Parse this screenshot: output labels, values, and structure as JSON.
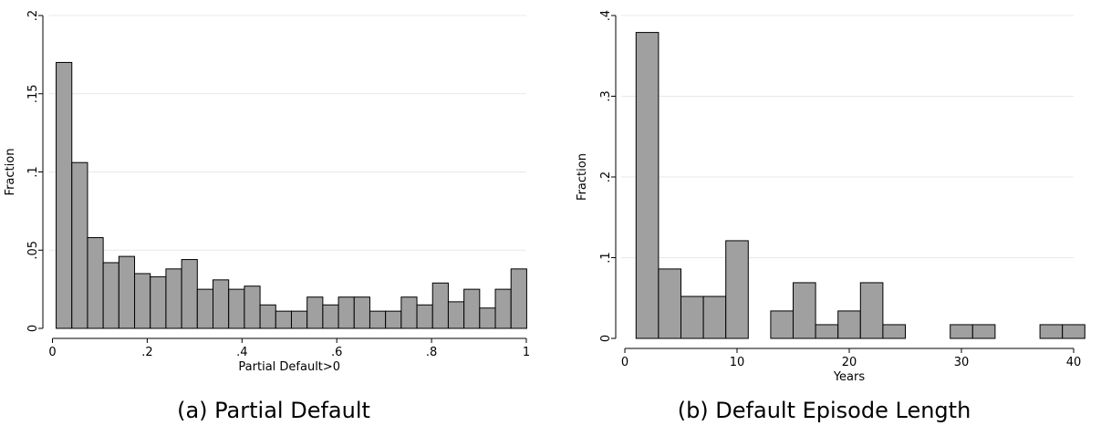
{
  "captions": {
    "a": "(a) Partial Default",
    "b": "(b) Default Episode Length"
  },
  "colors": {
    "bar_fill": "#a0a0a0",
    "bar_stroke": "#000000",
    "grid": "#e8e8e8"
  },
  "chart_data": [
    {
      "type": "bar",
      "xlabel": "Partial Default>0",
      "ylabel": "Fraction",
      "xlim": [
        0,
        1
      ],
      "ylim": [
        0,
        0.2
      ],
      "xticks": [
        0,
        0.2,
        0.4,
        0.6,
        0.8,
        1
      ],
      "xtick_labels": [
        "0",
        ".2",
        ".4",
        ".6",
        ".8",
        "1"
      ],
      "yticks": [
        0,
        0.05,
        0.1,
        0.15,
        0.2
      ],
      "ytick_labels": [
        "0",
        ".05",
        ".1",
        ".15",
        ".2"
      ],
      "grid": true,
      "bin_start": 0.0078,
      "bin_width": 0.0331,
      "values": [
        0.17,
        0.106,
        0.058,
        0.042,
        0.046,
        0.035,
        0.033,
        0.038,
        0.044,
        0.025,
        0.031,
        0.025,
        0.027,
        0.015,
        0.011,
        0.011,
        0.02,
        0.015,
        0.02,
        0.02,
        0.011,
        0.011,
        0.02,
        0.015,
        0.029,
        0.017,
        0.025,
        0.013,
        0.025,
        0.038
      ]
    },
    {
      "type": "bar",
      "xlabel": "Years",
      "ylabel": "Fraction",
      "xlim": [
        0,
        40
      ],
      "ylim": [
        0,
        0.4
      ],
      "xticks": [
        0,
        10,
        20,
        30,
        40
      ],
      "xtick_labels": [
        "0",
        "10",
        "20",
        "30",
        "40"
      ],
      "yticks": [
        0,
        0.1,
        0.2,
        0.3,
        0.4
      ],
      "ytick_labels": [
        "0",
        ".1",
        ".2",
        ".3",
        ".4"
      ],
      "grid": true,
      "bin_start": 1,
      "bin_width": 2,
      "values": [
        0.379,
        0.086,
        0.052,
        0.052,
        0.121,
        0,
        0.034,
        0.069,
        0.017,
        0.034,
        0.069,
        0.017,
        0,
        0,
        0.017,
        0.017,
        0,
        0,
        0.017,
        0.017
      ]
    }
  ]
}
